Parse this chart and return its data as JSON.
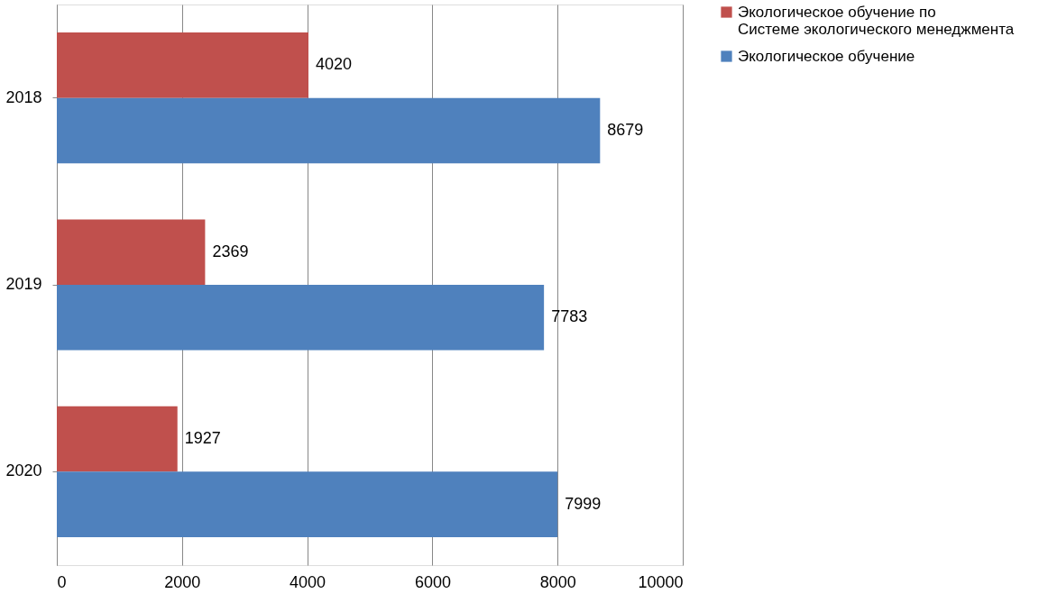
{
  "chart_data": {
    "type": "bar",
    "orientation": "horizontal",
    "categories": [
      "2018",
      "2019",
      "2020"
    ],
    "series": [
      {
        "name": "Экологическое обучение по Системе экологического менеджмента",
        "color": "#c0504d",
        "values": [
          4020,
          2369,
          1927
        ]
      },
      {
        "name": "Экологическое обучение",
        "color": "#4f81bd",
        "values": [
          8679,
          7783,
          7999
        ]
      }
    ],
    "xlim": [
      0,
      10000
    ],
    "xticks": [
      0,
      2000,
      4000,
      6000,
      8000,
      10000
    ],
    "grid": "x",
    "legend": "right",
    "data_labels": true
  }
}
